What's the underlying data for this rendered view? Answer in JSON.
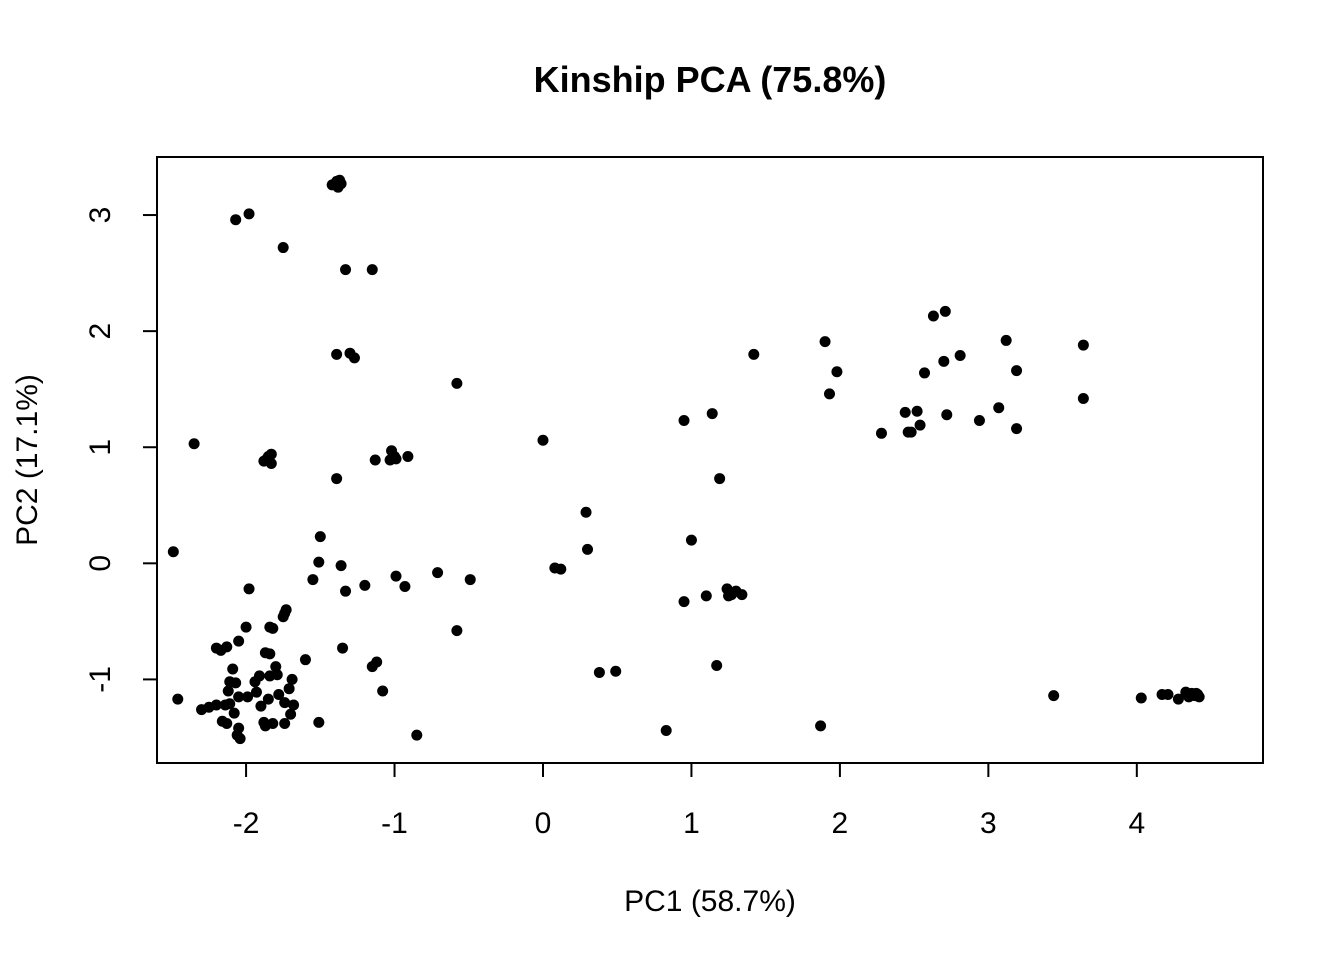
{
  "chart_data": {
    "type": "scatter",
    "title": "Kinship PCA (75.8%)",
    "xlabel": "PC1 (58.7%)",
    "ylabel": "PC2 (17.1%)",
    "xlim": [
      -2.6,
      4.85
    ],
    "ylim": [
      -1.72,
      3.5
    ],
    "x_ticks": [
      -2,
      -1,
      0,
      1,
      2,
      3,
      4
    ],
    "y_ticks": [
      -1,
      0,
      1,
      2,
      3
    ],
    "x_tick_labels": [
      "-2",
      "-1",
      "0",
      "1",
      "2",
      "3",
      "4"
    ],
    "y_tick_labels": [
      "-1",
      "0",
      "1",
      "2",
      "3"
    ],
    "grid": false,
    "legend": false,
    "point_color": "#000000",
    "points": [
      [
        -1.42,
        3.26
      ],
      [
        -1.39,
        3.29
      ],
      [
        -1.37,
        3.3
      ],
      [
        -1.36,
        3.27
      ],
      [
        -1.38,
        3.24
      ],
      [
        -2.07,
        2.96
      ],
      [
        -1.98,
        3.01
      ],
      [
        -1.75,
        2.72
      ],
      [
        -1.33,
        2.53
      ],
      [
        -1.15,
        2.53
      ],
      [
        -1.39,
        1.8
      ],
      [
        -1.3,
        1.81
      ],
      [
        -1.27,
        1.77
      ],
      [
        -0.58,
        1.55
      ],
      [
        -2.35,
        1.03
      ],
      [
        -1.88,
        0.88
      ],
      [
        -1.85,
        0.92
      ],
      [
        -1.83,
        0.94
      ],
      [
        -1.86,
        0.9
      ],
      [
        -1.83,
        0.86
      ],
      [
        -1.02,
        0.97
      ],
      [
        -1.0,
        0.92
      ],
      [
        -1.03,
        0.89
      ],
      [
        -0.99,
        0.9
      ],
      [
        -1.13,
        0.89
      ],
      [
        -0.91,
        0.92
      ],
      [
        -1.39,
        0.73
      ],
      [
        -2.49,
        0.1
      ],
      [
        -1.5,
        0.23
      ],
      [
        -1.51,
        0.01
      ],
      [
        -1.36,
        -0.02
      ],
      [
        -1.98,
        -0.22
      ],
      [
        -1.55,
        -0.14
      ],
      [
        -1.33,
        -0.24
      ],
      [
        -1.2,
        -0.19
      ],
      [
        -0.99,
        -0.11
      ],
      [
        -0.93,
        -0.2
      ],
      [
        -0.71,
        -0.08
      ],
      [
        -0.49,
        -0.14
      ],
      [
        -0.58,
        -0.58
      ],
      [
        -1.73,
        -0.4
      ],
      [
        -1.74,
        -0.43
      ],
      [
        -1.75,
        -0.46
      ],
      [
        -1.84,
        -0.55
      ],
      [
        -1.82,
        -0.56
      ],
      [
        -2.0,
        -0.55
      ],
      [
        -2.05,
        -0.67
      ],
      [
        -2.2,
        -0.73
      ],
      [
        -2.17,
        -0.75
      ],
      [
        -2.13,
        -0.72
      ],
      [
        -1.87,
        -0.77
      ],
      [
        -1.84,
        -0.78
      ],
      [
        -1.6,
        -0.83
      ],
      [
        -1.35,
        -0.73
      ],
      [
        -1.15,
        -0.89
      ],
      [
        -1.12,
        -0.85
      ],
      [
        -2.09,
        -0.91
      ],
      [
        -1.91,
        -0.97
      ],
      [
        -1.84,
        -0.97
      ],
      [
        -1.79,
        -0.96
      ],
      [
        -1.8,
        -0.89
      ],
      [
        -1.69,
        -1.0
      ],
      [
        -1.71,
        -1.08
      ],
      [
        -2.11,
        -1.02
      ],
      [
        -2.07,
        -1.03
      ],
      [
        -2.12,
        -1.1
      ],
      [
        -2.05,
        -1.15
      ],
      [
        -1.99,
        -1.15
      ],
      [
        -1.93,
        -1.11
      ],
      [
        -1.94,
        -1.02
      ],
      [
        -1.78,
        -1.13
      ],
      [
        -1.85,
        -1.17
      ],
      [
        -1.74,
        -1.2
      ],
      [
        -1.68,
        -1.22
      ],
      [
        -1.7,
        -1.3
      ],
      [
        -1.9,
        -1.23
      ],
      [
        -2.11,
        -1.21
      ],
      [
        -2.14,
        -1.22
      ],
      [
        -2.2,
        -1.22
      ],
      [
        -2.25,
        -1.24
      ],
      [
        -2.3,
        -1.26
      ],
      [
        -2.46,
        -1.17
      ],
      [
        -2.16,
        -1.36
      ],
      [
        -2.13,
        -1.38
      ],
      [
        -2.08,
        -1.29
      ],
      [
        -1.88,
        -1.37
      ],
      [
        -1.87,
        -1.4
      ],
      [
        -1.82,
        -1.38
      ],
      [
        -1.74,
        -1.38
      ],
      [
        -1.51,
        -1.37
      ],
      [
        -2.05,
        -1.42
      ],
      [
        -2.06,
        -1.48
      ],
      [
        -2.04,
        -1.51
      ],
      [
        -1.08,
        -1.1
      ],
      [
        -0.85,
        -1.48
      ],
      [
        0.0,
        1.06
      ],
      [
        0.29,
        0.44
      ],
      [
        0.3,
        0.12
      ],
      [
        0.08,
        -0.04
      ],
      [
        0.12,
        -0.05
      ],
      [
        0.38,
        -0.94
      ],
      [
        0.49,
        -0.93
      ],
      [
        0.83,
        -1.44
      ],
      [
        0.95,
        1.23
      ],
      [
        1.14,
        1.29
      ],
      [
        1.19,
        0.73
      ],
      [
        1.42,
        1.8
      ],
      [
        1.0,
        0.2
      ],
      [
        0.95,
        -0.33
      ],
      [
        1.1,
        -0.28
      ],
      [
        1.24,
        -0.22
      ],
      [
        1.27,
        -0.27
      ],
      [
        1.3,
        -0.24
      ],
      [
        1.34,
        -0.27
      ],
      [
        1.25,
        -0.28
      ],
      [
        1.17,
        -0.88
      ],
      [
        1.87,
        -1.4
      ],
      [
        1.9,
        1.91
      ],
      [
        1.98,
        1.65
      ],
      [
        1.93,
        1.46
      ],
      [
        2.28,
        1.12
      ],
      [
        2.44,
        1.3
      ],
      [
        2.46,
        1.13
      ],
      [
        2.48,
        1.13
      ],
      [
        2.52,
        1.31
      ],
      [
        2.54,
        1.19
      ],
      [
        2.57,
        1.64
      ],
      [
        2.63,
        2.13
      ],
      [
        2.71,
        2.17
      ],
      [
        2.7,
        1.74
      ],
      [
        2.72,
        1.28
      ],
      [
        2.81,
        1.79
      ],
      [
        2.94,
        1.23
      ],
      [
        3.07,
        1.34
      ],
      [
        3.12,
        1.92
      ],
      [
        3.19,
        1.66
      ],
      [
        3.19,
        1.16
      ],
      [
        3.64,
        1.88
      ],
      [
        3.64,
        1.42
      ],
      [
        3.44,
        -1.14
      ],
      [
        4.03,
        -1.16
      ],
      [
        4.17,
        -1.13
      ],
      [
        4.21,
        -1.13
      ],
      [
        4.28,
        -1.17
      ],
      [
        4.33,
        -1.11
      ],
      [
        4.35,
        -1.15
      ],
      [
        4.37,
        -1.12
      ],
      [
        4.39,
        -1.14
      ],
      [
        4.41,
        -1.13
      ],
      [
        4.42,
        -1.15
      ],
      [
        4.4,
        -1.12
      ]
    ]
  }
}
